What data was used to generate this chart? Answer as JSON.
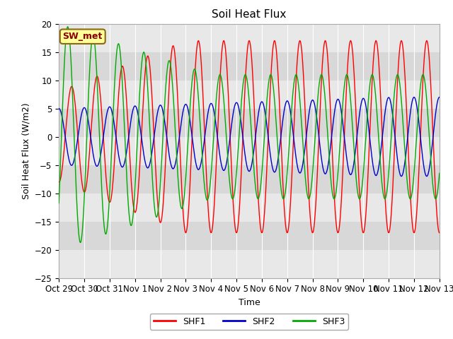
{
  "title": "Soil Heat Flux",
  "ylabel": "Soil Heat Flux (W/m2)",
  "xlabel": "Time",
  "annotation": "SW_met",
  "ylim": [
    -25,
    20
  ],
  "yticks": [
    -25,
    -20,
    -15,
    -10,
    -5,
    0,
    5,
    10,
    15,
    20
  ],
  "xtick_labels": [
    "Oct 29",
    "Oct 30",
    "Oct 31",
    "Nov 1",
    "Nov 2",
    "Nov 3",
    "Nov 4",
    "Nov 5",
    "Nov 6",
    "Nov 7",
    "Nov 8",
    "Nov 9",
    "Nov 10",
    "Nov 11",
    "Nov 12",
    "Nov 13"
  ],
  "color_shf1": "#FF0000",
  "color_shf2": "#0000CC",
  "color_shf3": "#00AA00",
  "legend_labels": [
    "SHF1",
    "SHF2",
    "SHF3"
  ],
  "title_fontsize": 11,
  "label_fontsize": 9,
  "tick_fontsize": 8.5
}
